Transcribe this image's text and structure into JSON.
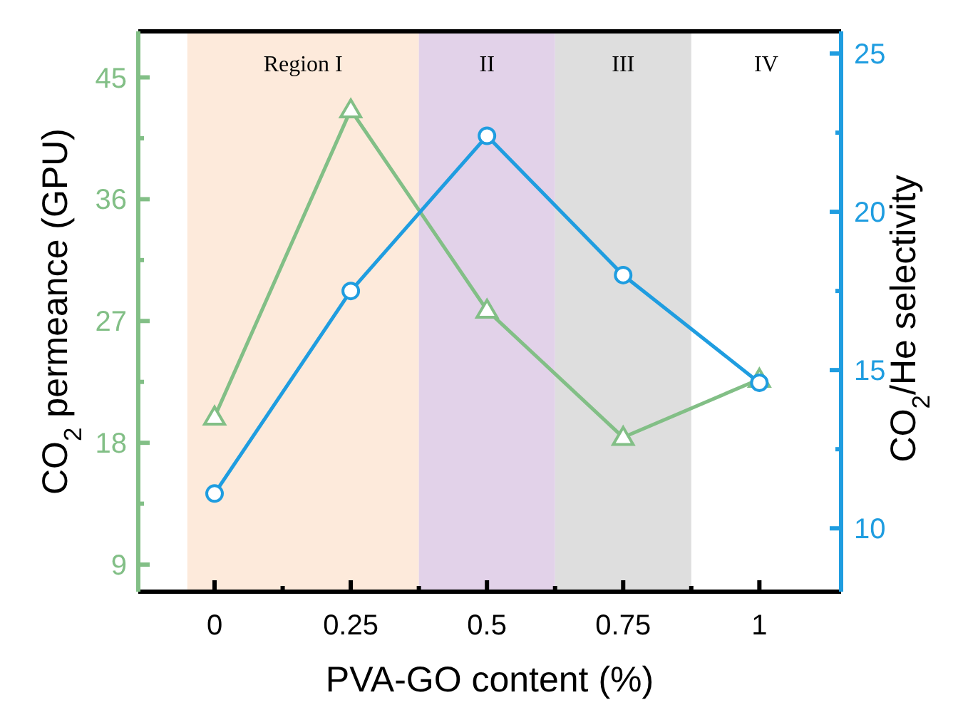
{
  "chart_data": {
    "type": "line",
    "xlabel": "PVA-GO content (%)",
    "ylabel": "CO$_{2}$ permeance (GPU)",
    "y2label": "CO$_{2}$/He selectivity",
    "x": [
      0,
      0.25,
      0.5,
      0.75,
      1
    ],
    "series": [
      {
        "color": "#82bf86",
        "marker": "triangle",
        "values": [
          19.9,
          42.6,
          27.8,
          18.4,
          22.7
        ]
      },
      {
        "color": "#1f9de0",
        "marker": "circle",
        "axis": "y2",
        "values": [
          11.1,
          17.5,
          22.4,
          18.0,
          14.6
        ]
      }
    ],
    "xlim": [
      -0.14,
      1.15
    ],
    "xticks": [
      0,
      {
        "value": 0.125,
        "label": null
      },
      0.25,
      {
        "value": 0.375,
        "label": null
      },
      0.5,
      {
        "value": 0.625,
        "label": null
      },
      0.75,
      {
        "value": 0.875,
        "label": null
      },
      1
    ],
    "ylim": [
      7,
      48.4
    ],
    "yticks": [
      9,
      {
        "value": 13.5,
        "label": null
      },
      18,
      {
        "value": 22.5,
        "label": null
      },
      27,
      {
        "value": 31.5,
        "label": null
      },
      36,
      {
        "value": 40.5,
        "label": null
      },
      45
    ],
    "y2lim": [
      8,
      25.7
    ],
    "y2ticks": [
      10,
      {
        "value": 12.5,
        "label": null
      },
      15,
      {
        "value": 17.5,
        "label": null
      },
      20,
      {
        "value": 22.5,
        "label": null
      },
      25
    ],
    "bands": [
      {
        "axis": "x",
        "from": -0.05,
        "to": 0.375,
        "label": "Region I",
        "color": "#fdeadb"
      },
      {
        "axis": "x",
        "from": 0.375,
        "to": 0.625,
        "label": "II",
        "color": "#e2d2e9"
      },
      {
        "axis": "x",
        "from": 0.625,
        "to": 0.875,
        "label": "III",
        "color": "#dedede"
      }
    ],
    "annotations": [
      "IV"
    ],
    "grid": false,
    "line_style": "solid"
  }
}
